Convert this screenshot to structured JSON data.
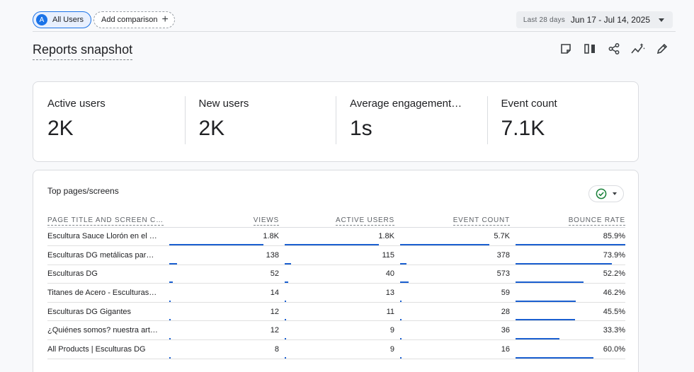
{
  "topbar": {
    "segment": {
      "avatar_letter": "A",
      "label": "All Users"
    },
    "comparison": {
      "label": "Add comparison"
    },
    "date_range": {
      "prefix": "Last 28 days",
      "value": "Jun 17 - Jul 14, 2025"
    }
  },
  "page": {
    "title": "Reports snapshot"
  },
  "actions": [
    {
      "icon": "note-icon"
    },
    {
      "icon": "compare-columns-icon"
    },
    {
      "icon": "share-icon"
    },
    {
      "icon": "insights-icon"
    },
    {
      "icon": "edit-icon"
    }
  ],
  "kpis": [
    {
      "label": "Active users",
      "value": "2K"
    },
    {
      "label": "New users",
      "value": "2K"
    },
    {
      "label": "Average engagement…",
      "value": "1s"
    },
    {
      "label": "Event count",
      "value": "7.1K"
    }
  ],
  "top_pages": {
    "title": "Top pages/screens",
    "columns": [
      "PAGE TITLE AND SCREEN C…",
      "VIEWS",
      "ACTIVE USERS",
      "EVENT COUNT",
      "BOUNCE RATE"
    ],
    "rows": [
      {
        "name": "Escultura Sauce Llorón en el R…",
        "views": "1.8K",
        "active_users": "1.8K",
        "event_count": "5.7K",
        "bounce_rate": "85.9%",
        "bars": [
          0.86,
          0.86,
          0.81,
          1.0
        ]
      },
      {
        "name": "Esculturas DG metálicas para …",
        "views": "138",
        "active_users": "115",
        "event_count": "378",
        "bounce_rate": "73.9%",
        "bars": [
          0.07,
          0.06,
          0.06,
          0.88
        ]
      },
      {
        "name": "Esculturas DG",
        "views": "52",
        "active_users": "40",
        "event_count": "573",
        "bounce_rate": "52.2%",
        "bars": [
          0.03,
          0.03,
          0.08,
          0.62
        ]
      },
      {
        "name": "Titanes de Acero - Esculturas …",
        "views": "14",
        "active_users": "13",
        "event_count": "59",
        "bounce_rate": "46.2%",
        "bars": [
          0.01,
          0.01,
          0.01,
          0.55
        ]
      },
      {
        "name": "Esculturas DG Gigantes",
        "views": "12",
        "active_users": "11",
        "event_count": "28",
        "bounce_rate": "45.5%",
        "bars": [
          0.01,
          0.01,
          0.01,
          0.54
        ]
      },
      {
        "name": "¿Quiénes somos? nuestra arti…",
        "views": "12",
        "active_users": "9",
        "event_count": "36",
        "bounce_rate": "33.3%",
        "bars": [
          0.01,
          0.01,
          0.01,
          0.4
        ]
      },
      {
        "name": "All Products | Esculturas DG",
        "views": "8",
        "active_users": "9",
        "event_count": "16",
        "bounce_rate": "60.0%",
        "bars": [
          0.005,
          0.005,
          0.005,
          0.71
        ]
      }
    ]
  },
  "colors": {
    "accent": "#1a73e8",
    "bar": "#1a5fd0",
    "check": "#188038"
  }
}
